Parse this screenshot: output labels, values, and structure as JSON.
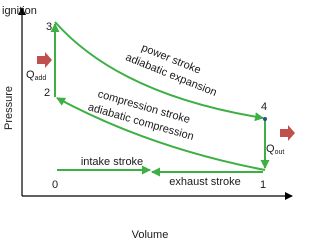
{
  "axes": {
    "y_label": "Pressure",
    "x_label": "Volume",
    "top_label": "ignition"
  },
  "points": [
    "0",
    "1",
    "2",
    "3",
    "4"
  ],
  "heat": {
    "in": {
      "symbol": "Q",
      "subscript": "add"
    },
    "out": {
      "symbol": "Q",
      "subscript": "out"
    }
  },
  "strokes": {
    "power": [
      "power stroke",
      "adiabatic expansion"
    ],
    "compression": [
      "compression stroke",
      "adiabatic compression"
    ],
    "intake": "intake stroke",
    "exhaust": "exhaust stroke"
  }
}
